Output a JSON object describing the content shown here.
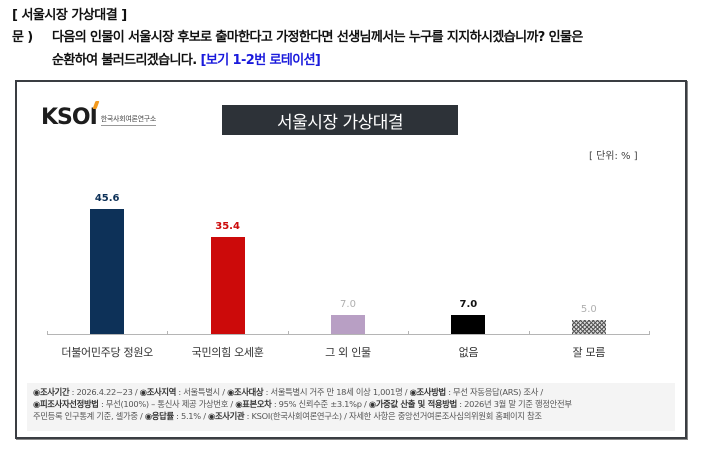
{
  "question": {
    "header": "[ 서울시장 가상대결 ]",
    "prefix": "문 )",
    "line1": "다음의 인물이 서울시장 후보로 출마한다고 가정한다면 선생님께서는 누구를 지지하시겠습니까? 인물은",
    "line2": "순환하여 불러드리겠습니다.",
    "note": "[보기 1-2번 로테이션]"
  },
  "logo": {
    "mark": "KSOI",
    "subtitle": "한국사회여론연구소"
  },
  "chart_title": "서울시장 가상대결",
  "unit_label": "[ 단위: % ]",
  "chart_data": {
    "type": "bar",
    "title": "서울시장 가상대결",
    "xlabel": "",
    "ylabel": "",
    "unit": "%",
    "categories": [
      "더불어민주당 정원오",
      "국민의힘 오세훈",
      "그 외 인물",
      "없음",
      "잘 모름"
    ],
    "values": [
      45.6,
      35.4,
      7.0,
      7.0,
      5.0
    ],
    "value_labels": [
      "45.6",
      "35.4",
      "7.0",
      "7.0",
      "5.0"
    ],
    "colors": [
      "#0d3158",
      "#cc0a0a",
      "#b89fc4",
      "#000000",
      "hatched-gray"
    ],
    "label_colors": [
      "#0d3158",
      "#cc0a0a",
      "#b0b0b0",
      "#111111",
      "#b0b0b0"
    ],
    "grid": false,
    "legend": "none",
    "ylim": [
      0,
      50
    ]
  },
  "footer": {
    "line1": [
      {
        "k": "◉조사기간",
        "v": " : 2026.4.22~23 / "
      },
      {
        "k": "◉조사지역",
        "v": " : 서울특별시 / "
      },
      {
        "k": "◉조사대상",
        "v": " : 서울특별시 거주 만 18세 이상 1,001명 / "
      },
      {
        "k": "◉조사방법",
        "v": " : 무선 자동응답(ARS) 조사 /"
      }
    ],
    "line2": [
      {
        "k": "◉피조사자선정방법",
        "v": " : 무선(100%) – 통신사 제공 가상번호 / "
      },
      {
        "k": "◉표본오차",
        "v": " : 95% 신뢰수준 ±3.1%p / "
      },
      {
        "k": "◉가중값 산출 및 적용방법",
        "v": " : 2026년 3월 말 기준 행정안전부"
      }
    ],
    "line3": [
      {
        "k": "",
        "v": "주민등록 인구통계 기준, 셀가중 / "
      },
      {
        "k": "◉응답률",
        "v": " : 5.1% / "
      },
      {
        "k": "◉조사기관",
        "v": " : KSOI(한국사회여론연구소) / "
      },
      {
        "k": "",
        "v": "자세한 사항은 중앙선거여론조사심의위원회 홈페이지 참조"
      }
    ]
  }
}
